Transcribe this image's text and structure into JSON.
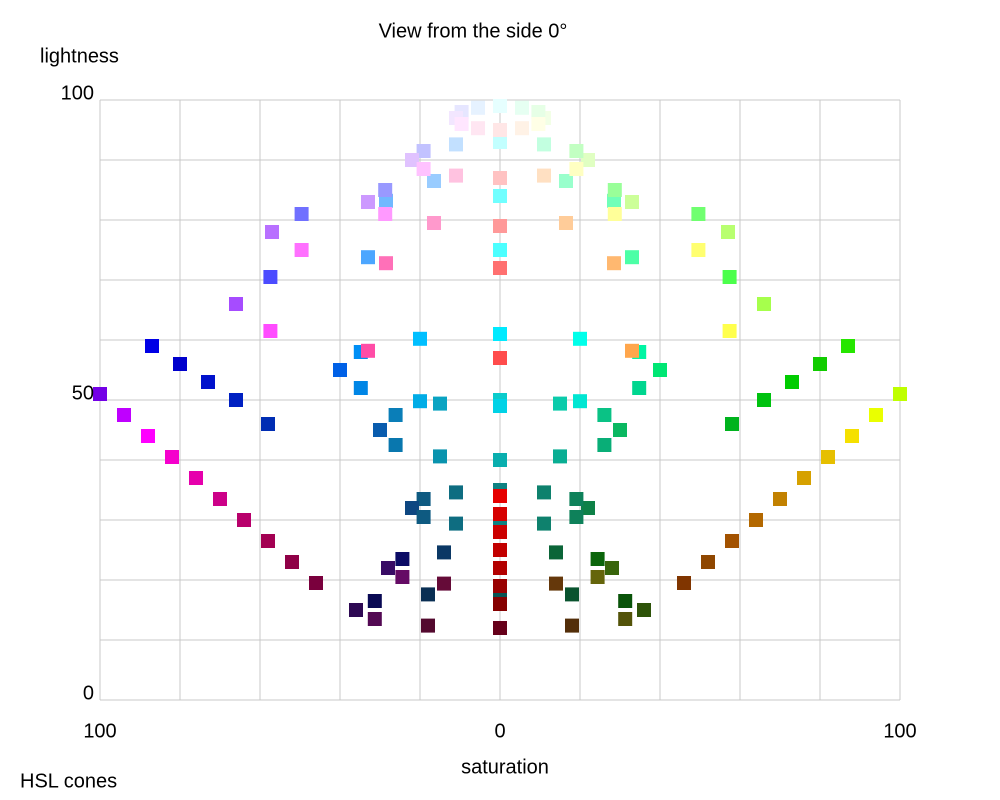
{
  "chart_data": {
    "type": "scatter",
    "title": "View from the side 0°",
    "ylabel": "lightness",
    "xlabel": "saturation",
    "caption": "HSL cones",
    "xlim": [
      -100,
      100
    ],
    "ylim": [
      0,
      100
    ],
    "xticks": [
      {
        "value": -100,
        "label": "100"
      },
      0,
      100
    ],
    "yticks": [
      0,
      50,
      100
    ],
    "xgrid": [
      -100,
      -80,
      -60,
      -40,
      -20,
      0,
      20,
      40,
      60,
      80,
      100
    ],
    "ygrid": [
      0,
      10,
      20,
      30,
      40,
      50,
      60,
      70,
      80,
      90,
      100
    ],
    "grid": true,
    "series": [
      {
        "x": [
          36,
          31.3,
          18,
          0,
          -18,
          -31.3,
          -36,
          -31.3,
          -18,
          0,
          18,
          31.3
        ],
        "y": [
          15,
          16.5,
          17.6,
          18,
          17.6,
          16.5,
          15,
          13.5,
          12.4,
          12,
          12.4,
          13.5
        ],
        "colors": [
          "hsl(90,80%,18%)",
          "hsl(120,80%,18%)",
          "hsl(150,80%,18%)",
          "hsl(180,80%,18%)",
          "hsl(210,80%,18%)",
          "hsl(240,80%,18%)",
          "hsl(270,80%,18%)",
          "hsl(300,80%,18%)",
          "hsl(330,80%,18%)",
          "hsl(0,80%,18%)",
          "hsl(30,80%,18%)",
          "hsl(60,80%,18%)"
        ]
      },
      {
        "x": [
          -100,
          -94,
          -88,
          -82,
          -76,
          -70,
          -64,
          -58,
          -52,
          -46
        ],
        "y": [
          51,
          47.5,
          44,
          40.5,
          37,
          33.5,
          30,
          26.5,
          23,
          19.5
        ],
        "colors": [
          "hsl(270,100%,45%)",
          "hsl(285,100%,50%)",
          "hsl(300,100%,50%)",
          "hsl(310,100%,48%)",
          "hsl(315,100%,45%)",
          "hsl(320,100%,40%)",
          "hsl(325,100%,36%)",
          "hsl(330,100%,32%)",
          "hsl(330,100%,28%)",
          "hsl(330,100%,24%)"
        ]
      },
      {
        "x": [
          -87,
          -80,
          -73,
          -66,
          -58
        ],
        "y": [
          59,
          56,
          53,
          50,
          46
        ],
        "colors": [
          "hsl(240,100%,45%)",
          "hsl(240,100%,40%)",
          "hsl(235,100%,40%)",
          "hsl(230,100%,38%)",
          "hsl(225,100%,35%)"
        ]
      },
      {
        "x": [
          100,
          94,
          88,
          82,
          76,
          70,
          64,
          58,
          52,
          46
        ],
        "y": [
          51,
          47.5,
          44,
          40.5,
          37,
          33.5,
          30,
          26.5,
          23,
          19.5
        ],
        "colors": [
          "hsl(75,100%,50%)",
          "hsl(65,100%,50%)",
          "hsl(55,100%,48%)",
          "hsl(50,100%,45%)",
          "hsl(45,100%,42%)",
          "hsl(40,100%,38%)",
          "hsl(35,100%,35%)",
          "hsl(30,100%,32%)",
          "hsl(30,100%,28%)",
          "hsl(25,100%,25%)"
        ]
      },
      {
        "x": [
          87,
          80,
          73,
          66,
          58
        ],
        "y": [
          59,
          56,
          53,
          50,
          46
        ],
        "colors": [
          "hsl(110,100%,45%)",
          "hsl(115,100%,40%)",
          "hsl(120,100%,40%)",
          "hsl(125,100%,38%)",
          "hsl(130,100%,35%)"
        ]
      },
      {
        "x": [
          28,
          24.4,
          14,
          0,
          -14,
          -24.4,
          -28,
          -24.4,
          -14,
          0,
          14,
          24.4
        ],
        "y": [
          22,
          23.5,
          24.6,
          25,
          24.6,
          23.5,
          22,
          20.5,
          19.4,
          19,
          19.4,
          20.5
        ],
        "colors": [
          "hsl(90,80%,22%)",
          "hsl(120,80%,22%)",
          "hsl(150,80%,22%)",
          "hsl(180,80%,22%)",
          "hsl(210,80%,22%)",
          "hsl(240,80%,22%)",
          "hsl(270,80%,22%)",
          "hsl(300,80%,22%)",
          "hsl(330,80%,22%)",
          "hsl(0,80%,22%)",
          "hsl(30,80%,22%)",
          "hsl(60,80%,22%)"
        ]
      },
      {
        "x": [
          22,
          19.1,
          11,
          0,
          -11,
          -19.1,
          -22,
          -19.1,
          -11,
          0,
          11,
          19.1
        ],
        "y": [
          32,
          33.5,
          34.6,
          35,
          34.6,
          33.5,
          32,
          30.5,
          29.4,
          29,
          29.4,
          30.5
        ],
        "colors": [
          "hsl(150,80%,28%)",
          "hsl(160,80%,28%)",
          "hsl(170,80%,28%)",
          "hsl(180,80%,28%)",
          "hsl(190,80%,28%)",
          "hsl(200,80%,28%)",
          "hsl(210,80%,28%)",
          "hsl(200,80%,28%)",
          "hsl(190,80%,28%)",
          "hsl(180,80%,28%)",
          "hsl(170,80%,28%)",
          "hsl(160,80%,28%)"
        ]
      },
      {
        "x": [
          30,
          26.1,
          15,
          0,
          -15,
          -26.1,
          -30,
          -26.1,
          -15,
          0,
          15,
          26.1
        ],
        "y": [
          45,
          47.5,
          49.4,
          50,
          49.4,
          47.5,
          45,
          42.5,
          40.6,
          40,
          40.6,
          42.5
        ],
        "colors": [
          "hsl(150,90%,38%)",
          "hsl(160,90%,40%)",
          "hsl(170,90%,42%)",
          "hsl(180,90%,42%)",
          "hsl(190,90%,40%)",
          "hsl(200,90%,38%)",
          "hsl(210,90%,36%)",
          "hsl(200,90%,36%)",
          "hsl(190,90%,36%)",
          "hsl(180,90%,36%)",
          "hsl(170,90%,36%)",
          "hsl(160,90%,36%)"
        ]
      },
      {
        "x": [
          40,
          34.8,
          20,
          0,
          -20,
          -34.8,
          -40,
          -34.8,
          -20,
          0,
          20,
          34.8
        ],
        "y": [
          55,
          58,
          60.2,
          61,
          60.2,
          58,
          55,
          52,
          49.8,
          49,
          49.8,
          52
        ],
        "colors": [
          "hsl(150,100%,45%)",
          "hsl(160,100%,48%)",
          "hsl(175,100%,50%)",
          "hsl(185,100%,50%)",
          "hsl(195,100%,50%)",
          "hsl(205,100%,48%)",
          "hsl(215,100%,45%)",
          "hsl(205,100%,45%)",
          "hsl(195,100%,45%)",
          "hsl(185,100%,45%)",
          "hsl(175,100%,45%)",
          "hsl(160,100%,42%)"
        ]
      },
      {
        "x": [
          0,
          0,
          0,
          0,
          0,
          0,
          0,
          0
        ],
        "y": [
          34,
          31,
          28,
          25,
          22,
          19,
          16,
          12
        ],
        "colors": [
          "hsl(0,100%,45%)",
          "hsl(0,100%,42%)",
          "hsl(0,100%,40%)",
          "hsl(0,100%,38%)",
          "hsl(0,100%,35%)",
          "hsl(0,100%,30%)",
          "hsl(0,100%,26%)",
          "hsl(345,100%,20%)"
        ]
      },
      {
        "x": [
          66,
          57.4,
          33,
          0,
          -33,
          -57.4,
          -66,
          -57.4,
          -33,
          0,
          33,
          57.4
        ],
        "y": [
          66,
          70.5,
          73.8,
          75,
          73.8,
          70.5,
          66,
          61.5,
          58.2,
          57,
          58.2,
          61.5
        ],
        "colors": [
          "hsl(90,100%,65%)",
          "hsl(120,100%,65%)",
          "hsl(150,100%,65%)",
          "hsl(180,100%,65%)",
          "hsl(210,100%,65%)",
          "hsl(240,100%,65%)",
          "hsl(270,100%,65%)",
          "hsl(300,100%,65%)",
          "hsl(330,100%,65%)",
          "hsl(0,100%,65%)",
          "hsl(30,100%,65%)",
          "hsl(60,100%,65%)"
        ]
      },
      {
        "x": [
          57,
          49.6,
          28.5,
          0,
          -28.5,
          -49.6,
          -57,
          -49.6,
          -28.5,
          0,
          28.5,
          49.6
        ],
        "y": [
          78,
          81,
          83.2,
          84,
          83.2,
          81,
          78,
          75,
          72.8,
          72,
          72.8,
          75
        ],
        "colors": [
          "hsl(90,100%,72%)",
          "hsl(120,100%,72%)",
          "hsl(150,100%,72%)",
          "hsl(180,100%,72%)",
          "hsl(210,100%,72%)",
          "hsl(240,100%,72%)",
          "hsl(270,100%,72%)",
          "hsl(300,100%,72%)",
          "hsl(330,100%,72%)",
          "hsl(0,100%,72%)",
          "hsl(30,100%,72%)",
          "hsl(60,100%,72%)"
        ]
      },
      {
        "x": [
          33,
          28.7,
          16.5,
          0,
          -16.5,
          -28.7,
          -33,
          -28.7,
          -16.5,
          0,
          16.5,
          28.7
        ],
        "y": [
          83,
          85,
          86.5,
          87,
          86.5,
          85,
          83,
          81,
          79.5,
          79,
          79.5,
          81
        ],
        "colors": [
          "hsl(90,100%,80%)",
          "hsl(120,100%,80%)",
          "hsl(150,100%,80%)",
          "hsl(180,100%,80%)",
          "hsl(210,100%,80%)",
          "hsl(240,100%,80%)",
          "hsl(270,100%,80%)",
          "hsl(300,100%,80%)",
          "hsl(330,100%,80%)",
          "hsl(0,100%,80%)",
          "hsl(30,100%,80%)",
          "hsl(60,100%,80%)"
        ]
      },
      {
        "x": [
          22,
          19.1,
          11,
          0,
          -11,
          -19.1,
          -22,
          -19.1,
          -11,
          0,
          11,
          19.1
        ],
        "y": [
          90,
          91.5,
          92.6,
          93,
          92.6,
          91.5,
          90,
          88.5,
          87.4,
          87,
          87.4,
          88.5
        ],
        "colors": [
          "hsl(90,100%,88%)",
          "hsl(120,100%,88%)",
          "hsl(150,100%,88%)",
          "hsl(180,100%,88%)",
          "hsl(210,100%,88%)",
          "hsl(240,100%,88%)",
          "hsl(270,100%,88%)",
          "hsl(300,100%,88%)",
          "hsl(330,100%,88%)",
          "hsl(0,100%,88%)",
          "hsl(30,100%,88%)",
          "hsl(60,100%,88%)"
        ]
      },
      {
        "x": [
          11,
          9.6,
          5.5,
          0,
          -5.5,
          -9.6,
          -11,
          -9.6,
          -5.5,
          0,
          5.5,
          9.6
        ],
        "y": [
          97,
          98,
          98.7,
          99,
          98.7,
          98,
          97,
          96,
          95.3,
          95,
          95.3,
          96
        ],
        "colors": [
          "hsl(90,100%,95%)",
          "hsl(120,100%,95%)",
          "hsl(150,100%,95%)",
          "hsl(180,100%,95%)",
          "hsl(210,100%,95%)",
          "hsl(240,100%,95%)",
          "hsl(270,100%,95%)",
          "hsl(300,100%,95%)",
          "hsl(330,100%,95%)",
          "hsl(0,100%,95%)",
          "hsl(30,100%,95%)",
          "hsl(60,100%,95%)"
        ]
      }
    ]
  }
}
